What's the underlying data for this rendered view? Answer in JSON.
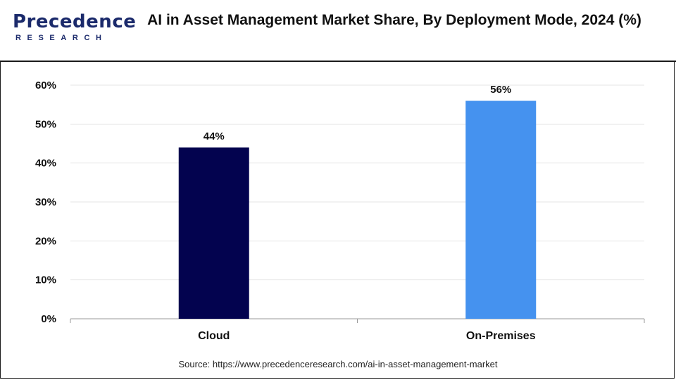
{
  "brand": {
    "logo_text_top": "Precedence",
    "logo_text_bottom": "RESEARCH",
    "logo_color": "#1b2a6b"
  },
  "title": "AI in Asset Management Market Share, By Deployment Mode, 2024 (%)",
  "source": "Source: https://www.precedenceresearch.com/ai-in-asset-management-market",
  "chart_data": {
    "type": "bar",
    "title": "AI in Asset Management Market Share, By Deployment Mode, 2024 (%)",
    "categories": [
      "Cloud",
      "On-Premises"
    ],
    "values": [
      44,
      56
    ],
    "data_labels": [
      "44%",
      "56%"
    ],
    "colors": [
      "#03034f",
      "#4592ef"
    ],
    "ylim": [
      0,
      60
    ],
    "yticks": [
      0,
      10,
      20,
      30,
      40,
      50,
      60
    ],
    "ytick_labels": [
      "0%",
      "10%",
      "20%",
      "30%",
      "40%",
      "50%",
      "60%"
    ],
    "xlabel": "",
    "ylabel": "",
    "grid": true,
    "legend": "none"
  }
}
